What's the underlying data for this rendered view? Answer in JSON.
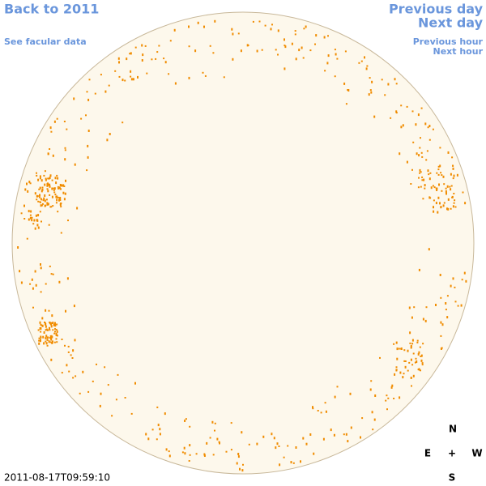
{
  "header": {
    "back_link": "Back to 2011",
    "facular_link": "See facular data",
    "prev_day": "Previous day",
    "next_day": "Next day",
    "prev_hour": "Previous hour",
    "next_hour": "Next hour"
  },
  "timestamp": "2011-08-17T09:59:10",
  "compass": {
    "north": "N",
    "east": "E",
    "center": "+",
    "west": "W",
    "south": "S"
  }
}
